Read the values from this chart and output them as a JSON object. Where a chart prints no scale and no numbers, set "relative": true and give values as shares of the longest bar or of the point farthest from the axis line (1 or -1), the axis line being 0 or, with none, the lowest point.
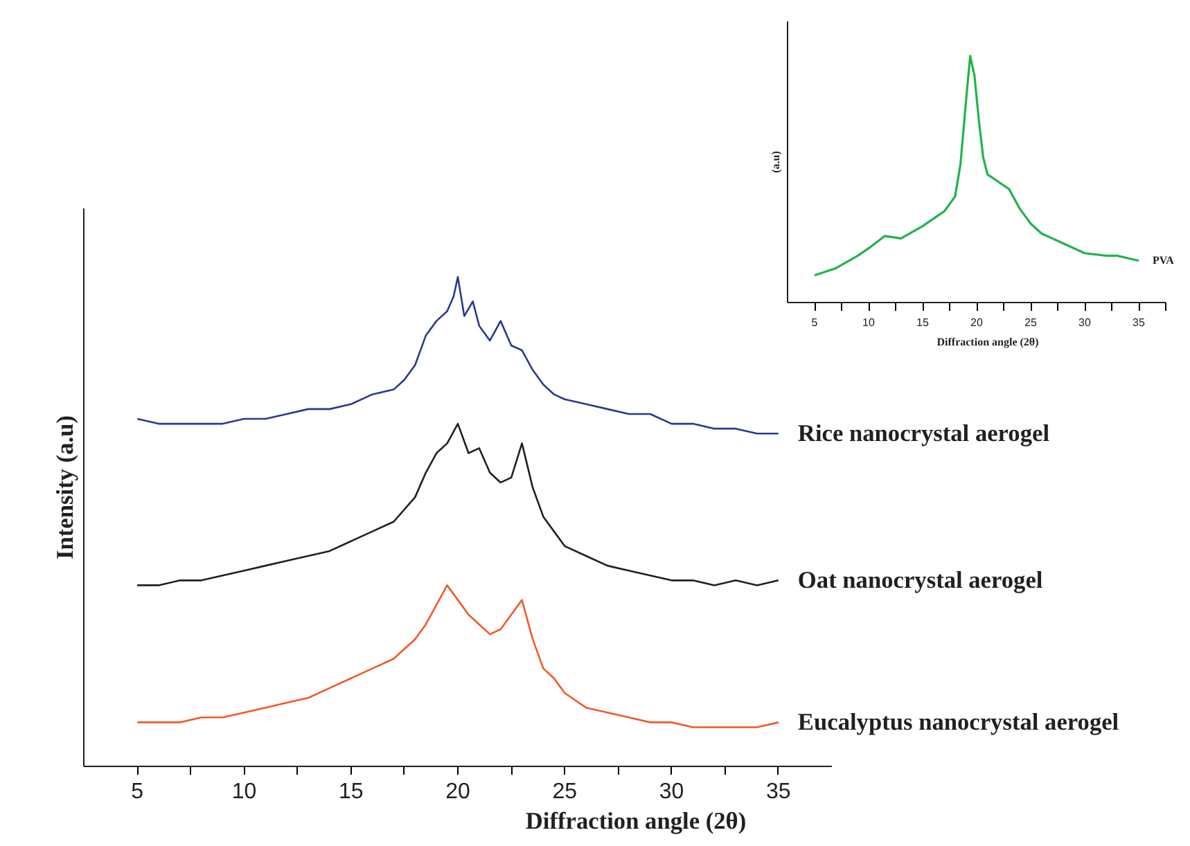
{
  "chart_data": [
    {
      "type": "line",
      "relative": true,
      "xlabel": "Diffraction angle (2θ)",
      "ylabel": "Intensity (a.u)",
      "xlim": [
        2.5,
        37.5
      ],
      "xticks": [
        5,
        {
          "value": 7.5,
          "label": null
        },
        10,
        {
          "value": 12.5,
          "label": null
        },
        15,
        {
          "value": 17.5,
          "label": null
        },
        20,
        {
          "value": 22.5,
          "label": null
        },
        25,
        {
          "value": 27.5,
          "label": null
        },
        30,
        {
          "value": 32.5,
          "label": null
        },
        35
      ],
      "grid": false,
      "series": [
        {
          "name": "Rice nanocrystal aerogel",
          "color": "#2b3990",
          "x": [
            5,
            6,
            7,
            8,
            9,
            10,
            11,
            12,
            13,
            14,
            15,
            16,
            17,
            17.5,
            18,
            18.5,
            19,
            19.5,
            19.8,
            20,
            20.3,
            20.7,
            21,
            21.5,
            22,
            22.5,
            23,
            23.5,
            24,
            24.5,
            25,
            26,
            27,
            28,
            29,
            30,
            31,
            32,
            33,
            34,
            35
          ],
          "values": [
            0.71,
            0.7,
            0.7,
            0.7,
            0.7,
            0.71,
            0.71,
            0.72,
            0.73,
            0.73,
            0.74,
            0.76,
            0.77,
            0.79,
            0.82,
            0.88,
            0.91,
            0.93,
            0.96,
            1.0,
            0.92,
            0.95,
            0.9,
            0.87,
            0.91,
            0.86,
            0.85,
            0.81,
            0.78,
            0.76,
            0.75,
            0.74,
            0.73,
            0.72,
            0.72,
            0.7,
            0.7,
            0.69,
            0.69,
            0.68,
            0.68
          ]
        },
        {
          "name": "Oat nanocrystal aerogel",
          "color": "#231f20",
          "x": [
            5,
            6,
            7,
            8,
            9,
            10,
            11,
            12,
            13,
            14,
            15,
            16,
            17,
            18,
            18.5,
            19,
            19.5,
            20,
            20.5,
            21,
            21.5,
            22,
            22.5,
            23,
            23.5,
            24,
            24.5,
            25,
            26,
            27,
            28,
            29,
            30,
            31,
            32,
            33,
            34,
            35
          ],
          "values": [
            0.37,
            0.37,
            0.38,
            0.38,
            0.39,
            0.4,
            0.41,
            0.42,
            0.43,
            0.44,
            0.46,
            0.48,
            0.5,
            0.55,
            0.6,
            0.64,
            0.66,
            0.7,
            0.64,
            0.65,
            0.6,
            0.58,
            0.59,
            0.66,
            0.57,
            0.51,
            0.48,
            0.45,
            0.43,
            0.41,
            0.4,
            0.39,
            0.38,
            0.38,
            0.37,
            0.38,
            0.37,
            0.38
          ]
        },
        {
          "name": "Eucalyptus nanocrystal aerogel",
          "color": "#f15a24",
          "x": [
            5,
            6,
            7,
            8,
            9,
            10,
            11,
            12,
            13,
            14,
            15,
            16,
            17,
            18,
            18.5,
            19,
            19.5,
            20,
            20.5,
            21,
            21.5,
            22,
            22.5,
            23,
            23.5,
            24,
            24.5,
            25,
            26,
            27,
            28,
            29,
            30,
            31,
            32,
            33,
            34,
            35
          ],
          "values": [
            0.09,
            0.09,
            0.09,
            0.1,
            0.1,
            0.11,
            0.12,
            0.13,
            0.14,
            0.16,
            0.18,
            0.2,
            0.22,
            0.26,
            0.29,
            0.33,
            0.37,
            0.34,
            0.31,
            0.29,
            0.27,
            0.28,
            0.31,
            0.34,
            0.26,
            0.2,
            0.18,
            0.15,
            0.12,
            0.11,
            0.1,
            0.09,
            0.09,
            0.08,
            0.08,
            0.08,
            0.08,
            0.09
          ]
        }
      ]
    },
    {
      "type": "line",
      "relative": true,
      "xlabel": "Diffraction angle (2θ)",
      "ylabel": "(a.u)",
      "xlim": [
        2.5,
        37.5
      ],
      "xticks": [
        5,
        {
          "value": 7.5,
          "label": null
        },
        10,
        {
          "value": 12.5,
          "label": null
        },
        15,
        {
          "value": 17.5,
          "label": null
        },
        20,
        {
          "value": 22.5,
          "label": null
        },
        25,
        {
          "value": 27.5,
          "label": null
        },
        30,
        {
          "value": 32.5,
          "label": null
        },
        35,
        {
          "value": 37.5,
          "label": null
        }
      ],
      "grid": false,
      "series": [
        {
          "name": "PVA",
          "color": "#22b24c",
          "x": [
            5,
            7,
            9,
            10,
            11.5,
            13,
            15,
            16,
            17,
            18,
            18.5,
            19,
            19.4,
            19.8,
            20.2,
            20.6,
            21,
            22,
            23,
            24,
            25,
            26,
            27,
            28,
            30,
            32,
            33,
            35
          ],
          "values": [
            0.11,
            0.14,
            0.19,
            0.22,
            0.27,
            0.26,
            0.31,
            0.34,
            0.37,
            0.43,
            0.56,
            0.81,
            1.0,
            0.92,
            0.74,
            0.59,
            0.52,
            0.49,
            0.46,
            0.38,
            0.32,
            0.28,
            0.26,
            0.24,
            0.2,
            0.19,
            0.19,
            0.17
          ]
        }
      ]
    }
  ]
}
